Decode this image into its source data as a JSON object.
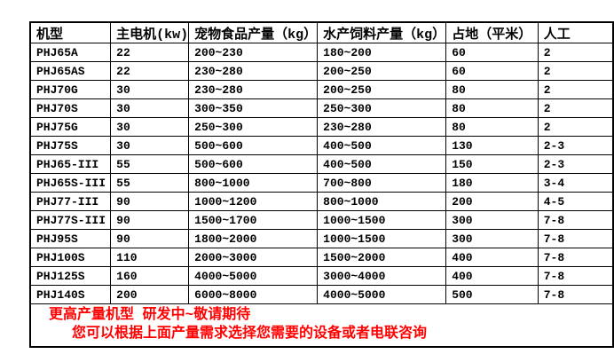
{
  "table": {
    "headers": [
      "机型",
      "主电机(kw)",
      "宠物食品产量（kg）",
      "水产饲料产量（kg）",
      "占地（平米）",
      "人工"
    ],
    "rows": [
      [
        "PHJ65A",
        "22",
        "200~230",
        "180~200",
        "60",
        "2"
      ],
      [
        "PHJ65AS",
        "22",
        "230~280",
        "200~250",
        "60",
        "2"
      ],
      [
        "PHJ70G",
        "30",
        "230~280",
        "200~250",
        "80",
        "2"
      ],
      [
        "PHJ70S",
        "30",
        "300~350",
        "250~300",
        "80",
        "2"
      ],
      [
        "PHJ75G",
        "30",
        "250~300",
        "230~280",
        "80",
        "2"
      ],
      [
        "PHJ75S",
        "30",
        "500~600",
        "400~500",
        "130",
        "2-3"
      ],
      [
        "PHJ65-III",
        "55",
        "500~600",
        "400~500",
        "150",
        "2-3"
      ],
      [
        "PHJ65S-III",
        "55",
        "800~1000",
        "700~800",
        "180",
        "3-4"
      ],
      [
        "PHJ77-III",
        "90",
        "1000~1200",
        "800~1000",
        "200",
        "4-5"
      ],
      [
        "PHJ77S-III",
        "90",
        "1500~1700",
        "1000~1500",
        "300",
        "7-8"
      ],
      [
        "PHJ95S",
        "90",
        "1800~2000",
        "1000~1500",
        "300",
        "7-8"
      ],
      [
        "PHJ100S",
        "110",
        "2000~3000",
        "1500~2000",
        "400",
        "7-8"
      ],
      [
        "PHJ125S",
        "160",
        "4000~5000",
        "3000~4000",
        "400",
        "7-8"
      ],
      [
        "PHJ140S",
        "200",
        "6000~8000",
        "4000~5000",
        "500",
        "7-8"
      ]
    ]
  },
  "footer": {
    "line1": "更高产量机型 研发中~敬请期待",
    "line2": "您可以根据上面产量需求选择您需要的设备或者电联咨询"
  },
  "colors": {
    "text": "#000000",
    "border": "#000000",
    "footer_text": "#ff0000",
    "background": "#ffffff"
  }
}
